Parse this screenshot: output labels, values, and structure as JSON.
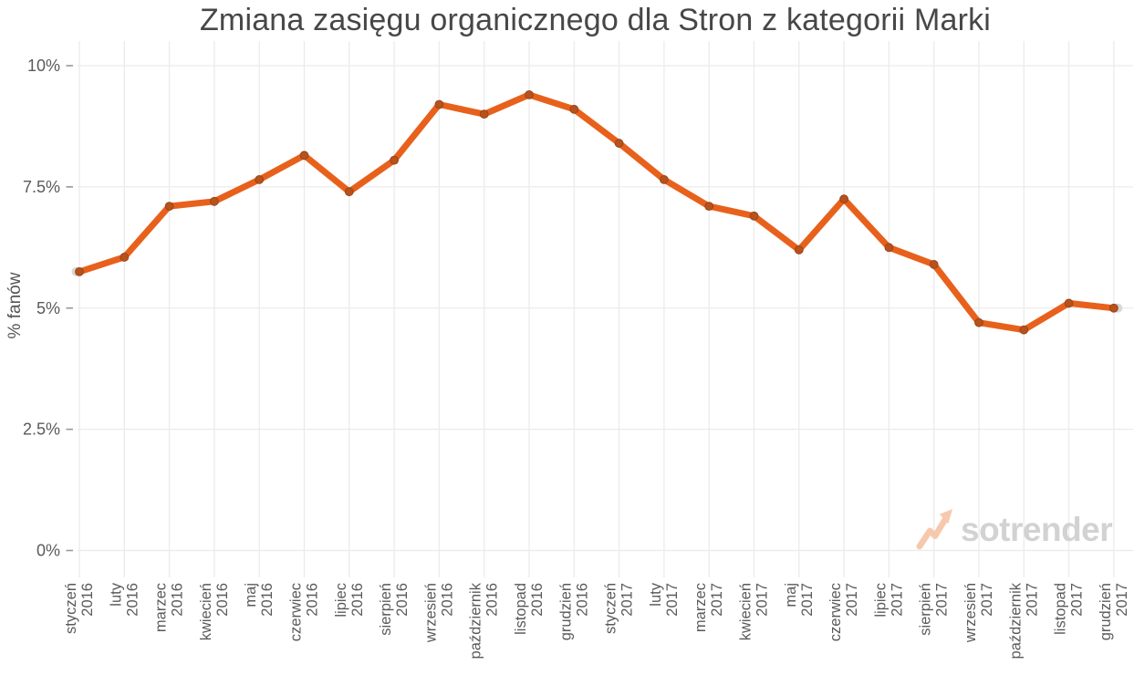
{
  "chart_data": {
    "type": "line",
    "title": "Zmiana zasięgu organicznego dla Stron z kategorii Marki",
    "xlabel": "",
    "ylabel": "% fanów",
    "categories": [
      {
        "month": "styczeń",
        "year": "2016"
      },
      {
        "month": "luty",
        "year": "2016"
      },
      {
        "month": "marzec",
        "year": "2016"
      },
      {
        "month": "kwiecień",
        "year": "2016"
      },
      {
        "month": "maj",
        "year": "2016"
      },
      {
        "month": "czerwiec",
        "year": "2016"
      },
      {
        "month": "lipiec",
        "year": "2016"
      },
      {
        "month": "sierpień",
        "year": "2016"
      },
      {
        "month": "wrzesień",
        "year": "2016"
      },
      {
        "month": "październik",
        "year": "2016"
      },
      {
        "month": "listopad",
        "year": "2016"
      },
      {
        "month": "grudzień",
        "year": "2016"
      },
      {
        "month": "styczeń",
        "year": "2017"
      },
      {
        "month": "luty",
        "year": "2017"
      },
      {
        "month": "marzec",
        "year": "2017"
      },
      {
        "month": "kwiecień",
        "year": "2017"
      },
      {
        "month": "maj",
        "year": "2017"
      },
      {
        "month": "czerwiec",
        "year": "2017"
      },
      {
        "month": "lipiec",
        "year": "2017"
      },
      {
        "month": "sierpień",
        "year": "2017"
      },
      {
        "month": "wrzesień",
        "year": "2017"
      },
      {
        "month": "październik",
        "year": "2017"
      },
      {
        "month": "listopad",
        "year": "2017"
      },
      {
        "month": "grudzień",
        "year": "2017"
      }
    ],
    "values": [
      5.75,
      6.05,
      7.1,
      7.2,
      7.65,
      8.15,
      7.4,
      8.05,
      9.2,
      9.0,
      9.4,
      9.1,
      8.4,
      7.65,
      7.1,
      6.9,
      6.2,
      7.25,
      6.25,
      5.9,
      4.7,
      4.55,
      5.1,
      5.0
    ],
    "ylim": [
      0,
      10.5
    ],
    "yticks": [
      {
        "value": 0,
        "label": "0%"
      },
      {
        "value": 2.5,
        "label": "2.5%"
      },
      {
        "value": 5,
        "label": "5%"
      },
      {
        "value": 7.5,
        "label": "7.5%"
      },
      {
        "value": 10,
        "label": "10%"
      }
    ],
    "grid": true,
    "legend": "none",
    "colors": {
      "line": "#e8611c",
      "marker_fill": "#b5521e",
      "marker_stroke": "#9e4415",
      "endpoint_cap": "#d8d8d8",
      "gridline": "#ebebeb",
      "tick": "#999999",
      "axis_text": "#5a5a5a",
      "title_text": "#474747"
    },
    "watermark": {
      "text": "sotrender",
      "icon": "trend-arrow-icon",
      "text_color": "#d2d2d2",
      "icon_color": "#f6c9ae"
    }
  }
}
